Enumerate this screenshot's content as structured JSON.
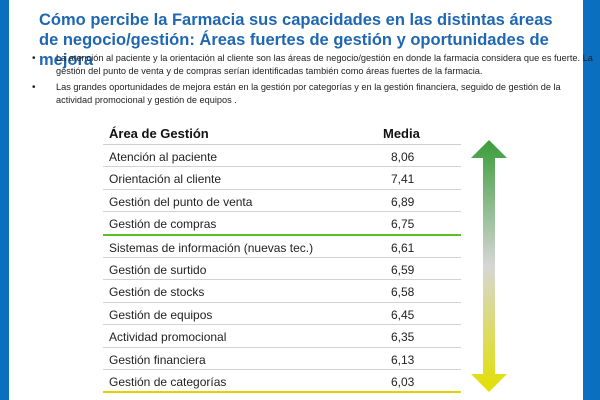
{
  "title": "Cómo percibe la Farmacia sus capacidades en las distintas áreas de negocio/gestión: Áreas fuertes de gestión y oportunidades de mejora",
  "bullets": [
    "La atención al paciente y la orientación al cliente son las áreas de negocio/gestión en donde la farmacia considera que es fuerte. La gestión del punto de venta y de compras serían identificadas también como áreas fuertes de la farmacia.",
    "Las grandes oportunidades de mejora están en la gestión por categorías y en la gestión financiera, seguido de gestión de la actividad promocional y gestión de equipos ."
  ],
  "table": {
    "headers": [
      "Área de Gestión",
      "Media"
    ],
    "rows": [
      {
        "area": "Atención al paciente",
        "media": "8,06"
      },
      {
        "area": "Orientación al cliente",
        "media": "7,41"
      },
      {
        "area": "Gestión del punto de venta",
        "media": "6,89"
      },
      {
        "area": "Gestión de compras",
        "media": "6,75"
      },
      {
        "area": "Sistemas de información (nuevas tec.)",
        "media": "6,61"
      },
      {
        "area": "Gestión de surtido",
        "media": "6,59"
      },
      {
        "area": "Gestión de stocks",
        "media": "6,58"
      },
      {
        "area": "Gestión de equipos",
        "media": "6,45"
      },
      {
        "area": "Actividad promocional",
        "media": "6,35"
      },
      {
        "area": "Gestión financiera",
        "media": "6,13"
      },
      {
        "area": "Gestión de categorías",
        "media": "6,03"
      }
    ]
  },
  "colors": {
    "frame": "#0b6fc0",
    "title": "#1f67b1",
    "strong_line": "#5cbf2a",
    "weak_line": "#e6d100",
    "arrow_top": "#3a9d3a",
    "arrow_bottom": "#e2e000"
  },
  "icons": {
    "scale_arrow": "double-headed-vertical-arrow"
  }
}
